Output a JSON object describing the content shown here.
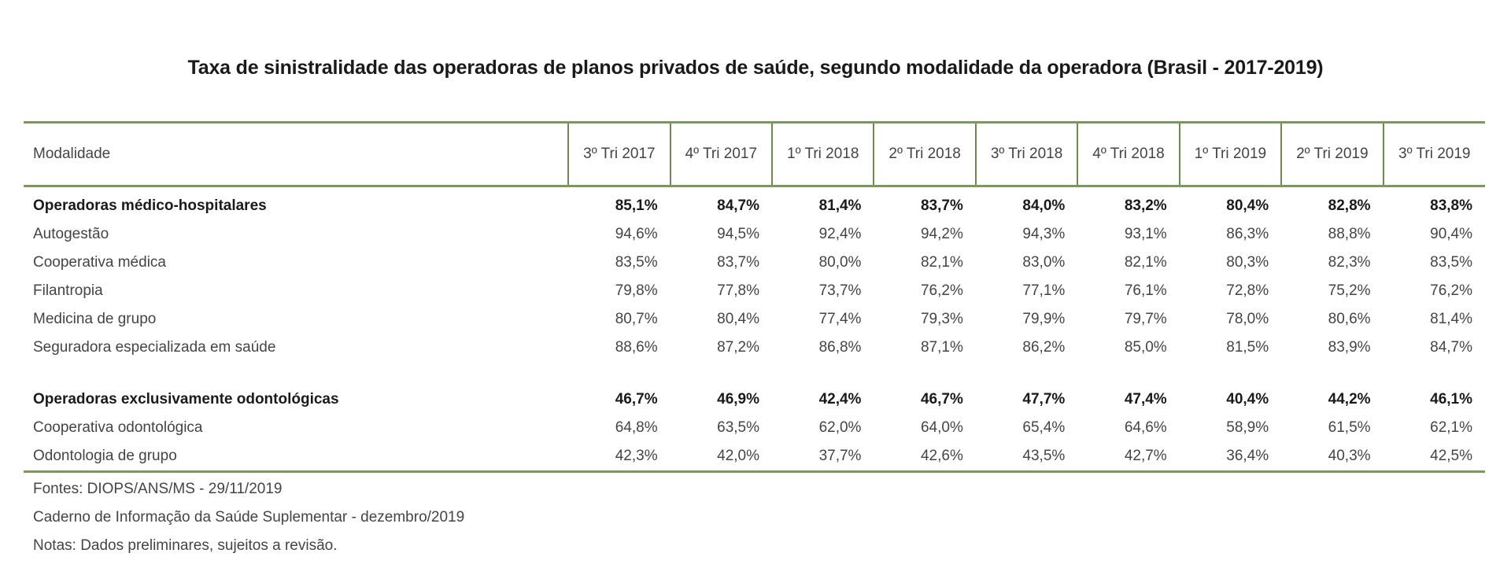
{
  "title": "Taxa de sinistralidade das operadoras de planos privados de saúde, segundo modalidade da operadora (Brasil - 2017-2019)",
  "table": {
    "header": {
      "modalidade": "Modalidade",
      "periods": [
        "3º Tri 2017",
        "4º Tri 2017",
        "1º Tri 2018",
        "2º Tri 2018",
        "3º Tri 2018",
        "4º Tri 2018",
        "1º Tri 2019",
        "2º Tri 2019",
        "3º Tri 2019"
      ]
    },
    "rows": [
      {
        "label": "Operadoras médico-hospitalares",
        "group": true,
        "values": [
          "85,1%",
          "84,7%",
          "81,4%",
          "83,7%",
          "84,0%",
          "83,2%",
          "80,4%",
          "82,8%",
          "83,8%"
        ]
      },
      {
        "label": "Autogestão",
        "group": false,
        "values": [
          "94,6%",
          "94,5%",
          "92,4%",
          "94,2%",
          "94,3%",
          "93,1%",
          "86,3%",
          "88,8%",
          "90,4%"
        ]
      },
      {
        "label": "Cooperativa médica",
        "group": false,
        "values": [
          "83,5%",
          "83,7%",
          "80,0%",
          "82,1%",
          "83,0%",
          "82,1%",
          "80,3%",
          "82,3%",
          "83,5%"
        ]
      },
      {
        "label": "Filantropia",
        "group": false,
        "values": [
          "79,8%",
          "77,8%",
          "73,7%",
          "76,2%",
          "77,1%",
          "76,1%",
          "72,8%",
          "75,2%",
          "76,2%"
        ]
      },
      {
        "label": "Medicina de grupo",
        "group": false,
        "values": [
          "80,7%",
          "80,4%",
          "77,4%",
          "79,3%",
          "79,9%",
          "79,7%",
          "78,0%",
          "80,6%",
          "81,4%"
        ]
      },
      {
        "label": "Seguradora especializada em saúde",
        "group": false,
        "values": [
          "88,6%",
          "87,2%",
          "86,8%",
          "87,1%",
          "86,2%",
          "85,0%",
          "81,5%",
          "83,9%",
          "84,7%"
        ]
      },
      {
        "label": "Operadoras exclusivamente odontológicas",
        "group": true,
        "values": [
          "46,7%",
          "46,9%",
          "42,4%",
          "46,7%",
          "47,7%",
          "47,4%",
          "40,4%",
          "44,2%",
          "46,1%"
        ]
      },
      {
        "label": "Cooperativa odontológica",
        "group": false,
        "values": [
          "64,8%",
          "63,5%",
          "62,0%",
          "64,0%",
          "65,4%",
          "64,6%",
          "58,9%",
          "61,5%",
          "62,1%"
        ]
      },
      {
        "label": "Odontologia de grupo",
        "group": false,
        "values": [
          "42,3%",
          "42,0%",
          "37,7%",
          "42,6%",
          "43,5%",
          "42,7%",
          "36,4%",
          "40,3%",
          "42,5%"
        ]
      }
    ]
  },
  "notes": {
    "fontes": "Fontes: DIOPS/ANS/MS - 29/11/2019",
    "caderno": "Caderno de Informação da Saúde Suplementar - dezembro/2019",
    "notas": "Notas: Dados preliminares, sujeitos a revisão."
  },
  "colors": {
    "border": "#7a9a5a",
    "text": "#444444"
  }
}
